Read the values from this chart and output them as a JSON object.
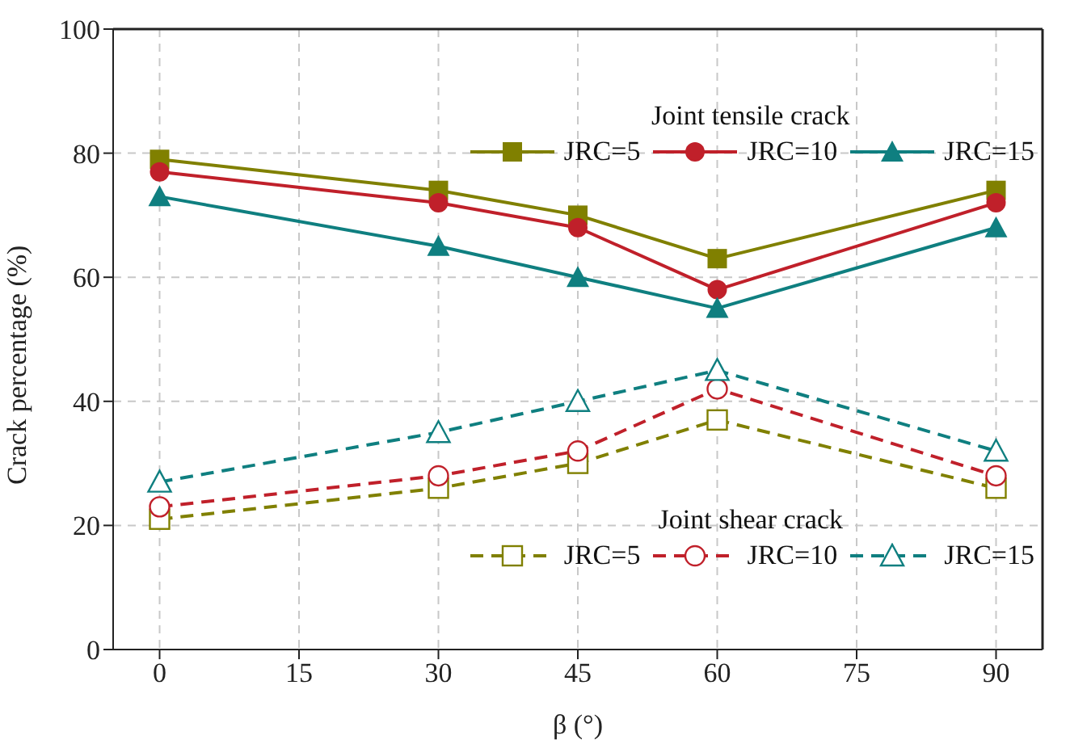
{
  "chart_data": {
    "type": "line",
    "xlabel": "β (°)",
    "ylabel": "Crack percentage (%)",
    "x": [
      0,
      30,
      45,
      60,
      90
    ],
    "xlim": [
      -5,
      95
    ],
    "xticks": [
      0,
      15,
      30,
      45,
      60,
      75,
      90
    ],
    "ylim": [
      0,
      100
    ],
    "yticks": [
      0,
      20,
      40,
      60,
      80,
      100
    ],
    "grid": true,
    "legend": [
      "top right",
      "bottom right"
    ],
    "legend_title": [
      "Joint tensile crack",
      "Joint shear crack"
    ],
    "series": [
      {
        "name": "JRC=5",
        "color": "#808000",
        "marker": "square",
        "line_style": "solid",
        "values": [
          79,
          74,
          70,
          63,
          74
        ]
      },
      {
        "name": "JRC=10",
        "color": "#c0202a",
        "marker": "circle",
        "line_style": "solid",
        "values": [
          77,
          72,
          68,
          58,
          72
        ]
      },
      {
        "name": "JRC=15",
        "color": "#0f7f80",
        "marker": "triangle",
        "line_style": "solid",
        "values": [
          73,
          65,
          60,
          55,
          68
        ]
      },
      {
        "name": "JRC=5",
        "color": "#808000",
        "marker": "square",
        "line_style": "dashed",
        "values": [
          21,
          26,
          30,
          37,
          26
        ]
      },
      {
        "name": "JRC=10",
        "color": "#c0202a",
        "marker": "circle",
        "line_style": "dashed",
        "values": [
          23,
          28,
          32,
          42,
          28
        ]
      },
      {
        "name": "JRC=15",
        "color": "#0f7f80",
        "marker": "triangle",
        "line_style": "dashed",
        "values": [
          27,
          35,
          40,
          45,
          32
        ]
      }
    ]
  }
}
